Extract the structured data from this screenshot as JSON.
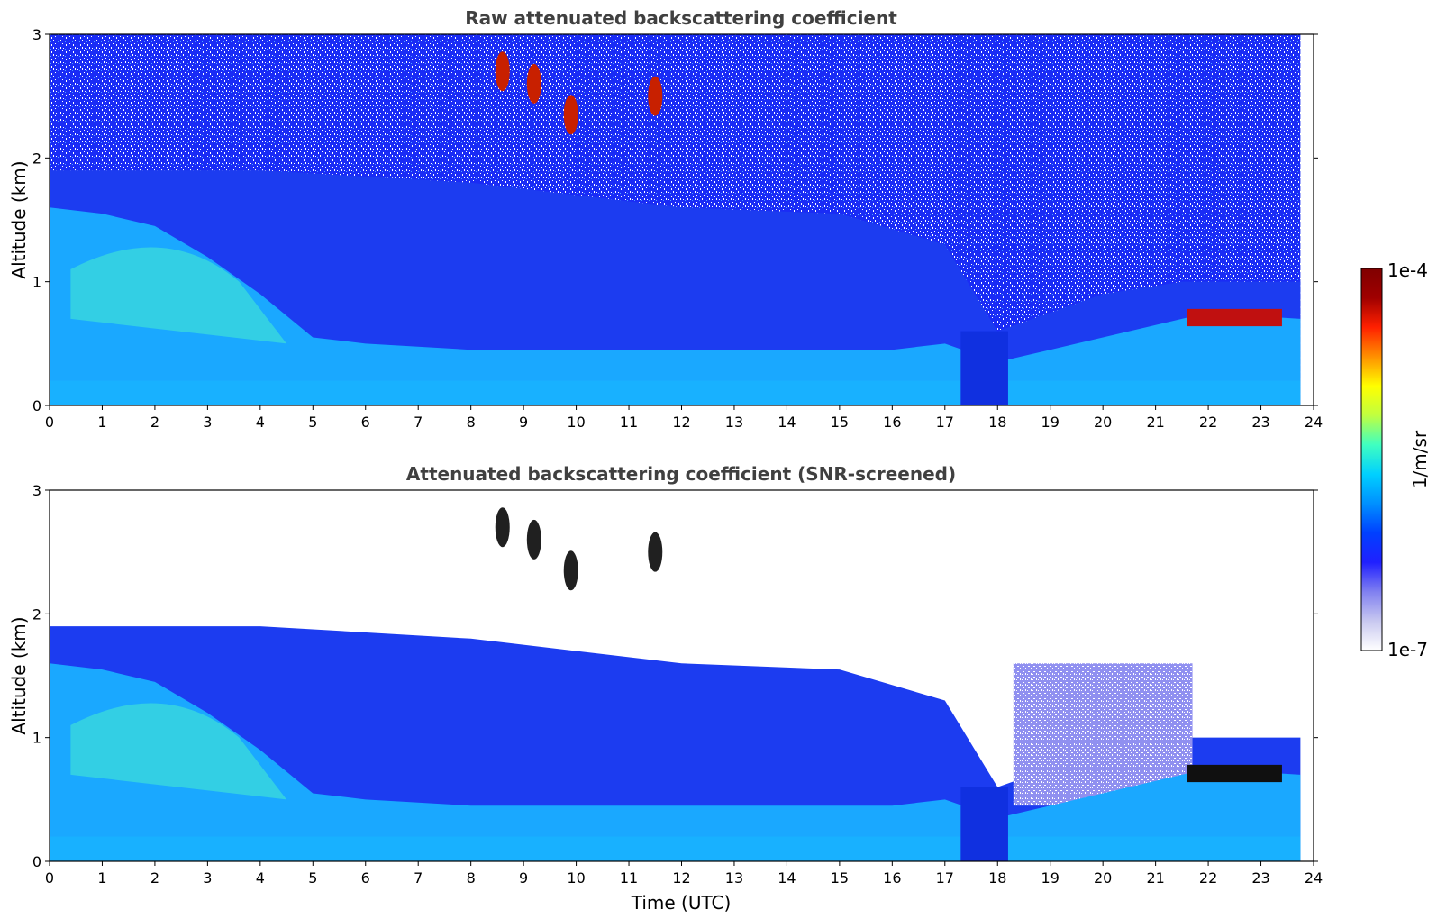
{
  "chart_data": [
    {
      "type": "heatmap",
      "title": "Raw attenuated backscattering coefficient",
      "xlabel": "",
      "ylabel": "Altitude (km)",
      "xlim": [
        0,
        24
      ],
      "ylim": [
        0,
        3
      ],
      "xticks": [
        0,
        1,
        2,
        3,
        4,
        5,
        6,
        7,
        8,
        9,
        10,
        11,
        12,
        13,
        14,
        15,
        16,
        17,
        18,
        19,
        20,
        21,
        22,
        23,
        24
      ],
      "yticks": [
        0,
        1,
        2,
        3
      ],
      "data_end_hour": 23.75,
      "screened": false,
      "features": {
        "boundary_layer_top_km": [
          [
            0,
            1.6
          ],
          [
            1,
            1.55
          ],
          [
            2,
            1.45
          ],
          [
            3,
            1.2
          ],
          [
            4,
            0.9
          ],
          [
            5,
            0.55
          ],
          [
            6,
            0.5
          ],
          [
            8,
            0.45
          ],
          [
            11,
            0.45
          ],
          [
            14,
            0.45
          ],
          [
            16,
            0.45
          ],
          [
            17,
            0.5
          ],
          [
            18,
            0.35
          ],
          [
            19,
            0.45
          ],
          [
            20,
            0.55
          ],
          [
            21,
            0.65
          ],
          [
            22,
            0.75
          ],
          [
            23,
            0.72
          ],
          [
            23.75,
            0.7
          ]
        ],
        "aerosol_top_km": [
          [
            0,
            1.9
          ],
          [
            4,
            1.9
          ],
          [
            8,
            1.8
          ],
          [
            12,
            1.6
          ],
          [
            15,
            1.55
          ],
          [
            17,
            1.3
          ],
          [
            18,
            0.6
          ],
          [
            20,
            0.9
          ],
          [
            21.5,
            1.0
          ],
          [
            23.75,
            1.0
          ]
        ],
        "low_cloud": {
          "start_hour": 21.6,
          "end_hour": 23.4,
          "altitude_km": 0.7
        },
        "high_clouds": [
          {
            "hour": 8.6,
            "altitude_km": 2.7
          },
          {
            "hour": 9.2,
            "altitude_km": 2.6
          },
          {
            "hour": 9.9,
            "altitude_km": 2.35
          },
          {
            "hour": 11.5,
            "altitude_km": 2.5
          }
        ]
      }
    },
    {
      "type": "heatmap",
      "title": "Attenuated backscattering coefficient (SNR-screened)",
      "xlabel": "Time (UTC)",
      "ylabel": "Altitude (km)",
      "xlim": [
        0,
        24
      ],
      "ylim": [
        0,
        3
      ],
      "xticks": [
        0,
        1,
        2,
        3,
        4,
        5,
        6,
        7,
        8,
        9,
        10,
        11,
        12,
        13,
        14,
        15,
        16,
        17,
        18,
        19,
        20,
        21,
        22,
        23,
        24
      ],
      "yticks": [
        0,
        1,
        2,
        3
      ],
      "data_end_hour": 23.75,
      "screened": true
    }
  ],
  "colorbar": {
    "label": "1/m/sr",
    "max_label": "1e-4",
    "min_label": "1e-7",
    "scale": "log",
    "colormap": "jet",
    "colors": [
      "#ffffff",
      "#c8c8f0",
      "#8080f0",
      "#2020ff",
      "#0040ff",
      "#0090ff",
      "#00d0ff",
      "#40ffc0",
      "#c0ff40",
      "#ffff00",
      "#ff9000",
      "#ff2000",
      "#a00000",
      "#800000"
    ]
  }
}
